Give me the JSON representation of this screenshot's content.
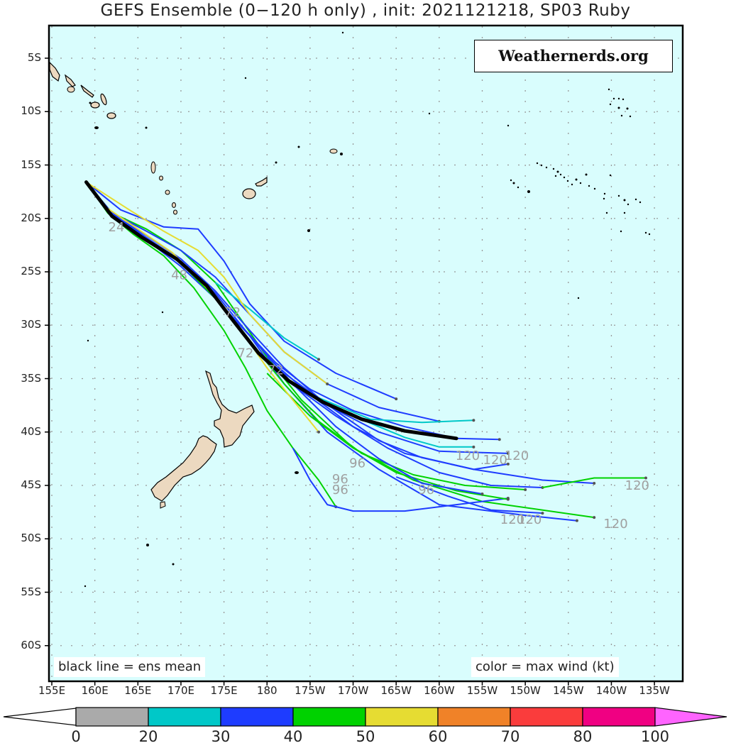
{
  "title": "GEFS Ensemble (0−120 h only) , init: 2021121218, SP03 Ruby",
  "watermark": "Weathernerds.org",
  "notes": {
    "mean": "black line = ens mean",
    "color": "color = max wind (kt)"
  },
  "axes": {
    "lat_labels": [
      "5S",
      "10S",
      "15S",
      "20S",
      "25S",
      "30S",
      "35S",
      "40S",
      "45S",
      "50S",
      "55S",
      "60S"
    ],
    "lon_labels": [
      "155E",
      "160E",
      "165E",
      "170E",
      "175E",
      "180",
      "175W",
      "170W",
      "165W",
      "160W",
      "155W",
      "150W",
      "145W",
      "140W",
      "135W"
    ]
  },
  "colorbar": {
    "labels": [
      "0",
      "20",
      "30",
      "40",
      "50",
      "60",
      "70",
      "80",
      "100"
    ],
    "colors": [
      "#aaaaaa",
      "#00c8c8",
      "#1e3cff",
      "#00d200",
      "#e6dc32",
      "#f08228",
      "#fa3c3c",
      "#f00082",
      "#ff64ff"
    ],
    "under_color": "#ffffff"
  },
  "colors": {
    "ocean": "#d9fdfd",
    "land": "#ecd9c0",
    "grid": "#999999",
    "mean_track": "#000000",
    "hour_label": "#a0a0a0"
  },
  "chart_data": {
    "type": "map-tracks",
    "title": "GEFS Ensemble (0-120 h only) , init: 2021121218, SP03 Ruby",
    "storm": "SP03 Ruby",
    "init": "2021121218",
    "lon_range": [
      155,
      228
    ],
    "lat_range": [
      -62.5,
      -2.5
    ],
    "legend": "color = max wind (kt); black line = ens mean",
    "colorbar_bins_kt": [
      0,
      20,
      30,
      40,
      50,
      60,
      70,
      80,
      100
    ],
    "mean_track": [
      {
        "lon": 159.0,
        "lat": -16.6
      },
      {
        "lon": 162.0,
        "lat": -19.8
      },
      {
        "lon": 165.5,
        "lat": -21.8
      },
      {
        "lon": 169.5,
        "lat": -23.8
      },
      {
        "lon": 173.0,
        "lat": -26.3
      },
      {
        "lon": 176.0,
        "lat": -29.5
      },
      {
        "lon": 179.0,
        "lat": -32.6
      },
      {
        "lon": 182.5,
        "lat": -35.2
      },
      {
        "lon": 186.5,
        "lat": -37.2
      },
      {
        "lon": 191.0,
        "lat": -38.8
      },
      {
        "lon": 196.0,
        "lat": -39.9
      },
      {
        "lon": 202.0,
        "lat": -40.6
      }
    ],
    "hour_labels": [
      {
        "text": "24",
        "lon": 162.5,
        "lat": -21.2
      },
      {
        "text": "48",
        "lon": 169.8,
        "lat": -25.7
      },
      {
        "text": "72",
        "lon": 176.0,
        "lat": -29.2
      },
      {
        "text": "72",
        "lon": 177.5,
        "lat": -33.0
      },
      {
        "text": "72",
        "lon": 181.0,
        "lat": -34.6
      },
      {
        "text": "96",
        "lon": 190.5,
        "lat": -43.3
      },
      {
        "text": "96",
        "lon": 188.5,
        "lat": -44.8
      },
      {
        "text": "96",
        "lon": 188.5,
        "lat": -45.8
      },
      {
        "text": "96",
        "lon": 198.5,
        "lat": -45.8
      },
      {
        "text": "120",
        "lon": 203.3,
        "lat": -42.6
      },
      {
        "text": "120",
        "lon": 206.5,
        "lat": -43.0
      },
      {
        "text": "120",
        "lon": 209.0,
        "lat": -42.6
      },
      {
        "text": "120",
        "lon": 223.0,
        "lat": -45.4
      },
      {
        "text": "120",
        "lon": 220.5,
        "lat": -49.0
      },
      {
        "text": "120",
        "lon": 208.5,
        "lat": -48.6
      },
      {
        "text": "120",
        "lon": 210.5,
        "lat": -48.6
      }
    ],
    "members": [
      {
        "color": "#00d200",
        "pts": [
          [
            159,
            -16.6
          ],
          [
            162,
            -19.5
          ],
          [
            166,
            -21.0
          ],
          [
            170,
            -23.0
          ],
          [
            174,
            -26.0
          ],
          [
            177,
            -29.5
          ],
          [
            180,
            -33.0
          ],
          [
            184,
            -37.0
          ],
          [
            190,
            -41.5
          ],
          [
            197,
            -44.5
          ],
          [
            205,
            -46.5
          ],
          [
            218,
            -48.0
          ]
        ]
      },
      {
        "color": "#00d200",
        "pts": [
          [
            159,
            -16.6
          ],
          [
            161.5,
            -19.5
          ],
          [
            164.5,
            -21.5
          ],
          [
            168,
            -23.5
          ],
          [
            171.5,
            -26.5
          ],
          [
            175,
            -30.5
          ],
          [
            177.5,
            -34.0
          ],
          [
            180,
            -38.0
          ],
          [
            183,
            -41.5
          ],
          [
            186,
            -44.5
          ],
          [
            188,
            -47.0
          ]
        ]
      },
      {
        "color": "#1e3cff",
        "pts": [
          [
            183,
            -41.5
          ],
          [
            185,
            -44.5
          ],
          [
            187,
            -46.8
          ],
          [
            190,
            -47.4
          ],
          [
            196,
            -47.4
          ],
          [
            202,
            -46.8
          ],
          [
            208,
            -46.2
          ]
        ]
      },
      {
        "color": "#1e3cff",
        "pts": [
          [
            159,
            -16.6
          ],
          [
            162,
            -19.8
          ],
          [
            166,
            -22.0
          ],
          [
            170,
            -24.5
          ],
          [
            174,
            -27.5
          ],
          [
            178,
            -31.0
          ],
          [
            182,
            -35.5
          ],
          [
            187,
            -40.0
          ],
          [
            193,
            -43.5
          ],
          [
            200,
            -46.8
          ],
          [
            210,
            -47.8
          ],
          [
            216,
            -48.3
          ]
        ]
      },
      {
        "color": "#1e3cff",
        "pts": [
          [
            159,
            -16.6
          ],
          [
            163,
            -19.2
          ],
          [
            168,
            -20.8
          ],
          [
            172,
            -21.0
          ],
          [
            175,
            -24.0
          ],
          [
            178,
            -28.0
          ],
          [
            182,
            -31.5
          ],
          [
            188,
            -34.5
          ],
          [
            195,
            -36.9
          ]
        ]
      },
      {
        "color": "#1e3cff",
        "pts": [
          [
            159,
            -16.6
          ],
          [
            162,
            -19.5
          ],
          [
            166,
            -21.2
          ],
          [
            170,
            -23.0
          ],
          [
            174,
            -25.5
          ],
          [
            178,
            -29.0
          ],
          [
            182,
            -32.5
          ],
          [
            187,
            -35.5
          ],
          [
            193,
            -37.7
          ],
          [
            200,
            -39.0
          ]
        ]
      },
      {
        "color": "#00c8c8",
        "pts": [
          [
            174,
            -26.0
          ],
          [
            178,
            -28.5
          ],
          [
            182,
            -31.2
          ],
          [
            186,
            -33.2
          ]
        ]
      },
      {
        "color": "#1e3cff",
        "pts": [
          [
            159,
            -16.6
          ],
          [
            162,
            -19.6
          ],
          [
            166,
            -21.8
          ],
          [
            170,
            -24.0
          ],
          [
            174,
            -27.0
          ],
          [
            177.5,
            -30.5
          ],
          [
            181,
            -33.5
          ],
          [
            185,
            -36.0
          ],
          [
            190,
            -38.0
          ],
          [
            196,
            -39.5
          ],
          [
            202,
            -40.6
          ],
          [
            207,
            -40.7
          ]
        ]
      },
      {
        "color": "#00c8c8",
        "pts": [
          [
            186,
            -36.8
          ],
          [
            192,
            -38.8
          ],
          [
            198,
            -39.1
          ],
          [
            204,
            -38.9
          ]
        ]
      },
      {
        "color": "#00c8c8",
        "pts": [
          [
            190,
            -38.5
          ],
          [
            196,
            -40.5
          ],
          [
            200,
            -41.4
          ],
          [
            204,
            -41.4
          ]
        ]
      },
      {
        "color": "#1e3cff",
        "pts": [
          [
            159,
            -16.6
          ],
          [
            162,
            -19.6
          ],
          [
            166,
            -21.6
          ],
          [
            170,
            -23.8
          ],
          [
            174,
            -26.8
          ],
          [
            178,
            -30.5
          ],
          [
            182,
            -34.0
          ],
          [
            187,
            -37.5
          ],
          [
            193,
            -40.0
          ],
          [
            200,
            -41.8
          ],
          [
            208,
            -42.0
          ]
        ]
      },
      {
        "color": "#1e3cff",
        "pts": [
          [
            180,
            -33.0
          ],
          [
            185,
            -36.5
          ],
          [
            190,
            -39.5
          ],
          [
            196,
            -42.0
          ],
          [
            204,
            -43.5
          ],
          [
            212,
            -44.5
          ],
          [
            218,
            -44.8
          ]
        ]
      },
      {
        "color": "#1e3cff",
        "pts": [
          [
            182,
            -35.0
          ],
          [
            188,
            -38.5
          ],
          [
            194,
            -41.5
          ],
          [
            200,
            -43.8
          ],
          [
            206,
            -45.0
          ],
          [
            212,
            -45.2
          ]
        ]
      },
      {
        "color": "#00d200",
        "pts": [
          [
            212,
            -45.2
          ],
          [
            218,
            -44.3
          ],
          [
            224,
            -44.3
          ]
        ]
      },
      {
        "color": "#1e3cff",
        "pts": [
          [
            182,
            -34.5
          ],
          [
            188,
            -38.0
          ],
          [
            193,
            -40.8
          ],
          [
            198,
            -42.4
          ],
          [
            204,
            -43.5
          ],
          [
            208,
            -43.0
          ]
        ]
      },
      {
        "color": "#00d200",
        "pts": [
          [
            159,
            -16.6
          ],
          [
            162,
            -19.8
          ],
          [
            166,
            -22.0
          ],
          [
            170,
            -24.2
          ],
          [
            174,
            -27.5
          ],
          [
            178,
            -31.5
          ],
          [
            182,
            -35.5
          ],
          [
            186,
            -39.0
          ],
          [
            191,
            -42.0
          ],
          [
            197,
            -44.0
          ],
          [
            203,
            -45.0
          ],
          [
            210,
            -45.4
          ]
        ]
      },
      {
        "color": "#00d200",
        "pts": [
          [
            180,
            -34.5
          ],
          [
            185,
            -38.5
          ],
          [
            190,
            -41.5
          ],
          [
            195,
            -43.8
          ],
          [
            202,
            -45.5
          ],
          [
            208,
            -46.3
          ]
        ]
      },
      {
        "color": "#1e3cff",
        "pts": [
          [
            195,
            -44.2
          ],
          [
            201,
            -46.0
          ],
          [
            206,
            -47.3
          ],
          [
            212,
            -47.6
          ]
        ]
      },
      {
        "color": "#1e3cff",
        "pts": [
          [
            178,
            -31.0
          ],
          [
            183,
            -35.5
          ],
          [
            188,
            -39.5
          ],
          [
            193,
            -42.5
          ],
          [
            198,
            -44.8
          ],
          [
            205,
            -45.8
          ]
        ]
      },
      {
        "color": "#e6dc32",
        "pts": [
          [
            159,
            -16.6
          ],
          [
            164,
            -19.2
          ],
          [
            168,
            -21.2
          ],
          [
            172,
            -23.0
          ],
          [
            175,
            -25.5
          ],
          [
            178,
            -29.0
          ],
          [
            182,
            -32.5
          ],
          [
            187,
            -35.5
          ]
        ]
      },
      {
        "color": "#e6dc32",
        "pts": [
          [
            159,
            -16.6
          ],
          [
            161,
            -18.8
          ],
          [
            165,
            -21.0
          ],
          [
            169,
            -23.2
          ],
          [
            173,
            -26.5
          ],
          [
            177,
            -30.5
          ],
          [
            180,
            -34.0
          ],
          [
            183,
            -37.0
          ],
          [
            186,
            -40.0
          ]
        ]
      }
    ]
  }
}
